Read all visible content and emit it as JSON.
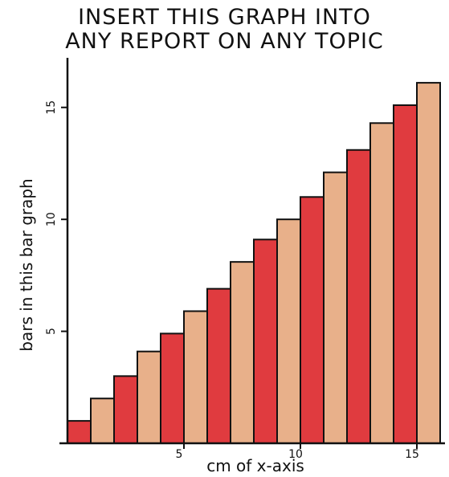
{
  "chart_data": {
    "type": "bar",
    "title_line1": "INSERT THIS GRAPH INTO",
    "title_line2": "ANY REPORT ON ANY TOPIC",
    "xlabel": "cm of x-axis",
    "ylabel": "bars in this bar graph",
    "x": [
      1,
      2,
      3,
      4,
      5,
      6,
      7,
      8,
      9,
      10,
      11,
      12,
      13,
      14,
      15,
      16
    ],
    "values": [
      1,
      2,
      3,
      4.1,
      4.9,
      5.9,
      6.9,
      8.1,
      9.1,
      10,
      11,
      12.1,
      13.1,
      14.3,
      15.1,
      16.1
    ],
    "xticks": [
      5,
      10,
      15
    ],
    "yticks": [
      5,
      10,
      15
    ],
    "ylim": [
      0,
      17
    ],
    "colors": {
      "odd": "#e03b3f",
      "even": "#e8b08a",
      "outline": "#111111"
    }
  }
}
